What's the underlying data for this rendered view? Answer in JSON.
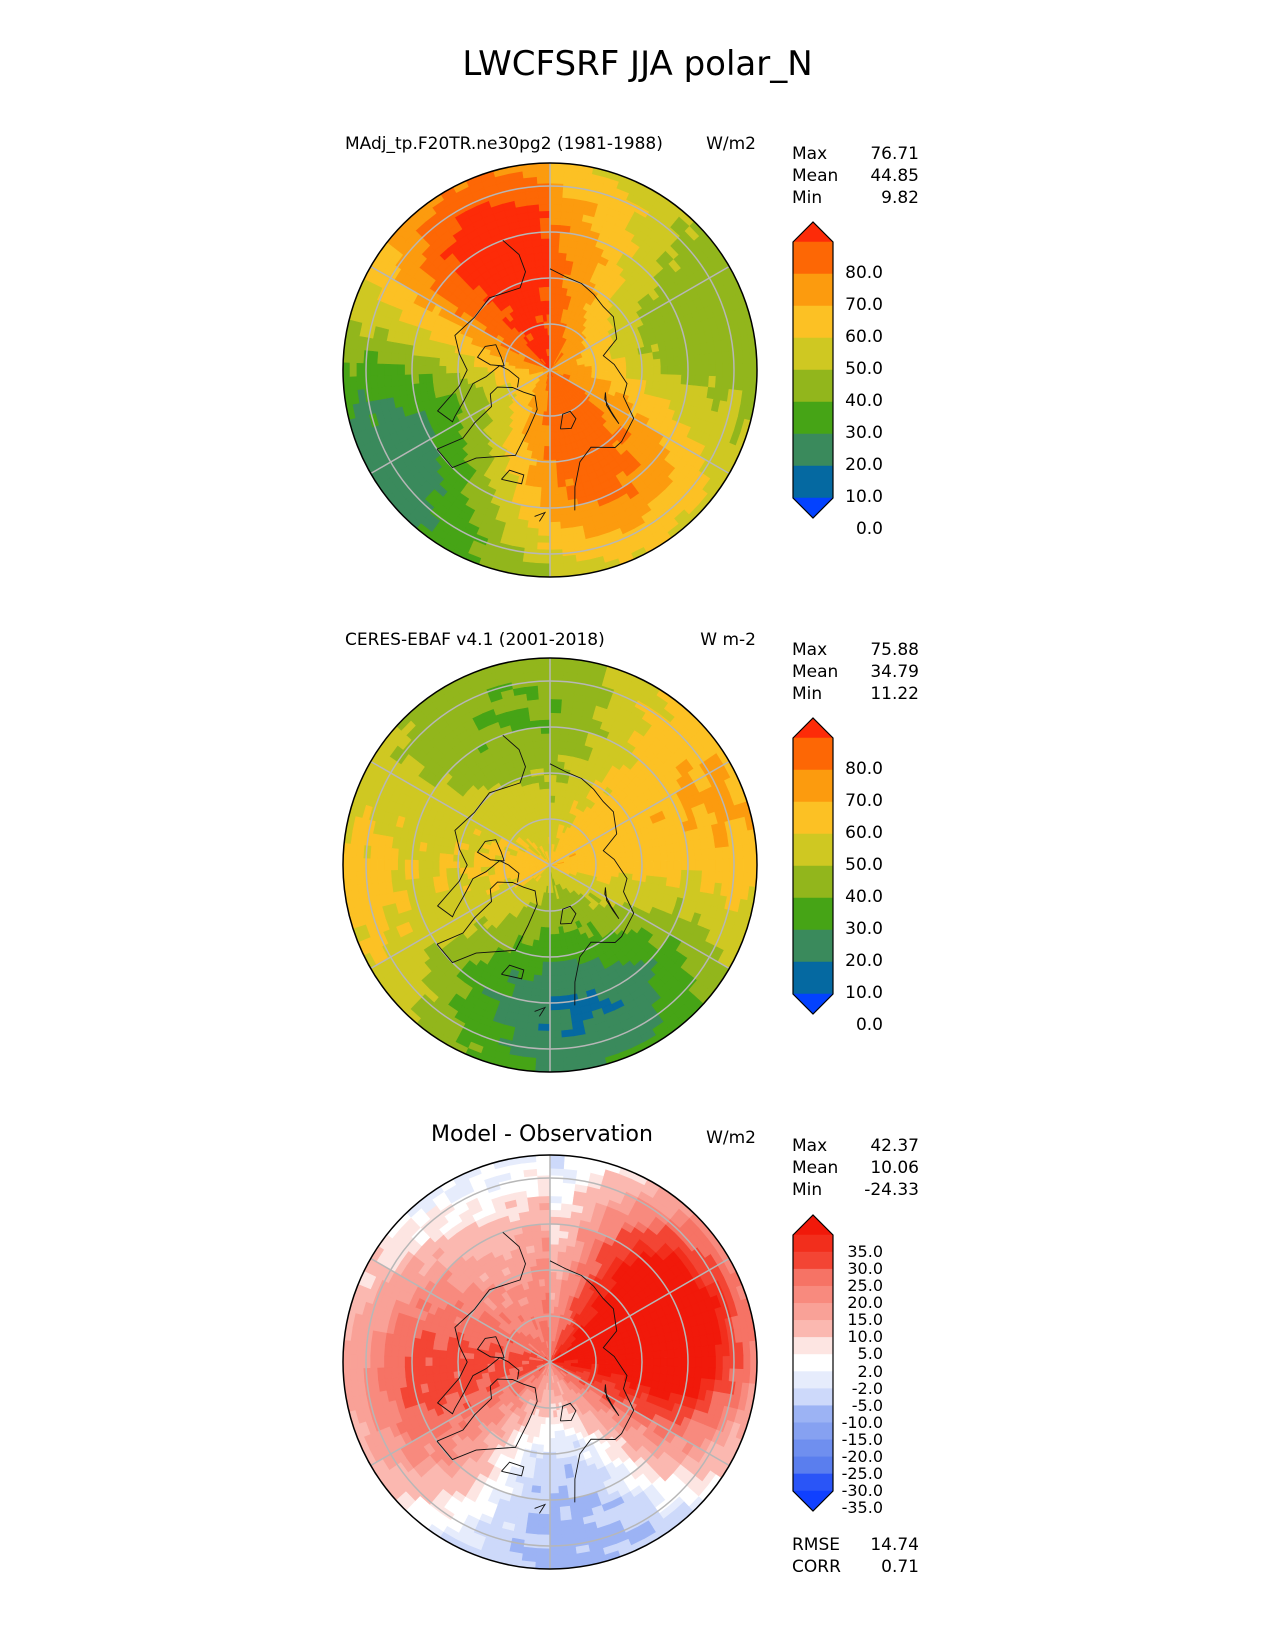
{
  "title": "LWCFSRF JJA polar_N",
  "colors": {
    "seq": [
      "#0342ff",
      "#0569a1",
      "#3a8a5c",
      "#46a416",
      "#92b61c",
      "#cfc822",
      "#fcc124",
      "#fc9b0e",
      "#fd6705",
      "#fd2b08"
    ],
    "diff": [
      "#1040ff",
      "#2a55f7",
      "#4068f0",
      "#5a7eee",
      "#6f8fef",
      "#86a1f1",
      "#9cb3f4",
      "#b4c6f7",
      "#cdd9fa",
      "#e6ecfc",
      "#ffffff",
      "#fde5e2",
      "#fccfca",
      "#fbb8b0",
      "#f9a197",
      "#f88a7e",
      "#f67365",
      "#f55c4d",
      "#f34534",
      "#f22e1c",
      "#f1190a"
    ]
  },
  "chart_data": [
    {
      "type": "heatmap",
      "panel": "test",
      "title": "MAdj_tp.F20TR.ne30pg2 (1981-1988)",
      "units": "W/m2",
      "stats": {
        "max_label": "Max",
        "max": "76.71",
        "mean_label": "Mean",
        "mean": "44.85",
        "min_label": "Min",
        "min": "9.82"
      },
      "colorbar": {
        "levels": [
          "80.0",
          "70.0",
          "60.0",
          "50.0",
          "40.0",
          "30.0",
          "20.0",
          "10.0",
          "0.0"
        ],
        "extend": "both"
      },
      "field": {
        "pole": 72,
        "lat60": 50,
        "lat45": 38,
        "bands": [
          [
            20,
            1.0,
            0.9,
            15
          ],
          [
            10,
            0.7,
            -1.2,
            20
          ]
        ],
        "continent_boost": 6
      }
    },
    {
      "type": "heatmap",
      "panel": "reference",
      "title": "CERES-EBAF v4.1 (2001-2018)",
      "units": "W m-2",
      "stats": {
        "max_label": "Max",
        "max": "75.88",
        "mean_label": "Mean",
        "mean": "34.79",
        "min_label": "Min",
        "min": "11.22"
      },
      "colorbar": {
        "levels": [
          "80.0",
          "70.0",
          "60.0",
          "50.0",
          "40.0",
          "30.0",
          "20.0",
          "10.0",
          "0.0"
        ],
        "extend": "both"
      },
      "field": {
        "pole": 52,
        "lat60": 34,
        "lat45": 40,
        "bands": [
          [
            -12,
            1.0,
            1.0,
            18
          ],
          [
            8,
            0.6,
            -1.4,
            15
          ]
        ],
        "continent_boost": 3
      }
    },
    {
      "type": "heatmap",
      "panel": "difference",
      "title": "Model - Observation",
      "units": "W/m2",
      "stats": {
        "max_label": "Max",
        "max": "42.37",
        "mean_label": "Mean",
        "mean": "10.06",
        "min_label": "Min",
        "min": "-24.33"
      },
      "colorbar": {
        "levels": [
          "35.0",
          "30.0",
          "25.0",
          "20.0",
          "15.0",
          "10.0",
          "5.0",
          "2.0",
          "-2.0",
          "-5.0",
          "-10.0",
          "-15.0",
          "-20.0",
          "-25.0",
          "-30.0",
          "-35.0"
        ],
        "extend": "both"
      },
      "metrics": {
        "rmse_label": "RMSE",
        "rmse": "14.74",
        "corr_label": "CORR",
        "corr": "0.71"
      },
      "field": {
        "pole": 24,
        "lat60": 16,
        "lat45": 2,
        "bands": [
          [
            -14,
            1.0,
            1.0,
            14
          ],
          [
            10,
            0.6,
            -0.8,
            12
          ]
        ],
        "continent_boost": 4
      }
    }
  ]
}
